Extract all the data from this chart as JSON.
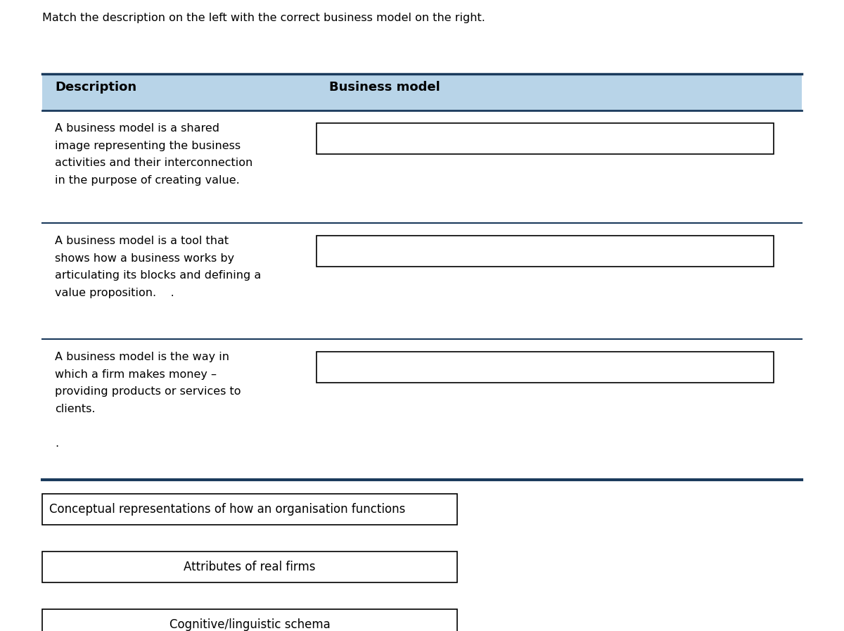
{
  "title_text": "Match the description on the left with the correct business model on the right.",
  "header_bg_color": "#b8d4e8",
  "header_border_color": "#1a3a5c",
  "header_left": "Description",
  "header_right": "Business model",
  "descriptions": [
    "A business model is a shared\nimage representing the business\nactivities and their interconnection\nin the purpose of creating value.",
    "A business model is a tool that\nshows how a business works by\narticulating its blocks and defining a\nvalue proposition.    .",
    "A business model is the way in\nwhich a firm makes money –\nproviding products or services to\nclients.\n\n."
  ],
  "answer_options": [
    "Conceptual representations of how an organisation functions",
    "Attributes of real firms",
    "Cognitive/linguistic schema"
  ],
  "divider_color": "#1a3a5c",
  "row_divider_color": "#1a3a5c",
  "text_color": "#000000",
  "bg_color": "#ffffff",
  "font_size_title": 11.5,
  "font_size_header": 13,
  "font_size_body": 11.5,
  "font_size_options": 12
}
